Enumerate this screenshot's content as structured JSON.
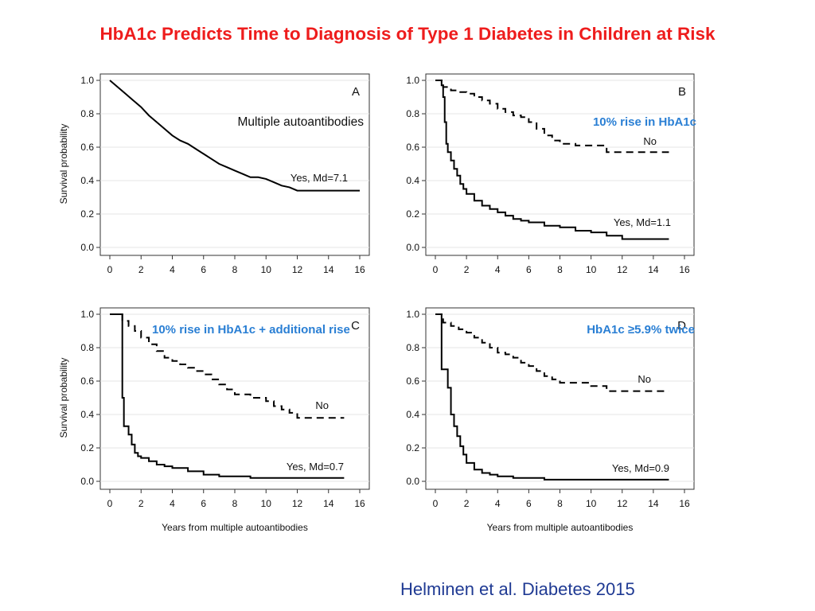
{
  "slide": {
    "title": "HbA1c Predicts Time to Diagnosis of Type 1 Diabetes in Children at Risk",
    "citation": "Helminen et al. Diabetes 2015",
    "title_color": "#ee1c1c",
    "citation_color": "#1f3a93",
    "annotation_color": "#2a7fd4"
  },
  "chart_data": [
    {
      "type": "line",
      "panel_letter": "A",
      "annotation": "Multiple autoantibodies",
      "annotation_style": "black",
      "ylabel": "Survival probability",
      "xlabel": "",
      "xlim": [
        0,
        16
      ],
      "ylim": [
        0,
        1
      ],
      "xticks": [
        "0",
        "2",
        "4",
        "6",
        "8",
        "10",
        "12",
        "14",
        "16"
      ],
      "yticks": [
        "0.0",
        "0.2",
        "0.4",
        "0.6",
        "0.8",
        "1.0"
      ],
      "series": [
        {
          "name": "Yes",
          "label": "Yes, Md=7.1",
          "style": "solid",
          "step": false,
          "x": [
            0,
            0.5,
            1,
            1.5,
            2,
            2.5,
            3,
            3.5,
            4,
            4.5,
            5,
            5.5,
            6,
            6.5,
            7,
            7.5,
            8,
            8.5,
            9,
            9.5,
            10,
            10.5,
            11,
            11.5,
            12,
            13,
            14,
            15,
            16
          ],
          "y": [
            1.0,
            0.96,
            0.92,
            0.88,
            0.84,
            0.79,
            0.75,
            0.71,
            0.67,
            0.64,
            0.62,
            0.59,
            0.56,
            0.53,
            0.5,
            0.48,
            0.46,
            0.44,
            0.42,
            0.42,
            0.41,
            0.39,
            0.37,
            0.36,
            0.34,
            0.34,
            0.34,
            0.34,
            0.34
          ]
        }
      ]
    },
    {
      "type": "line",
      "panel_letter": "B",
      "annotation": "10% rise in HbA1c",
      "annotation_style": "blue",
      "ylabel": "",
      "xlabel": "",
      "xlim": [
        0,
        16
      ],
      "ylim": [
        0,
        1
      ],
      "xticks": [
        "0",
        "2",
        "4",
        "6",
        "8",
        "10",
        "12",
        "14",
        "16"
      ],
      "yticks": [
        "0.0",
        "0.2",
        "0.4",
        "0.6",
        "0.8",
        "1.0"
      ],
      "series": [
        {
          "name": "No",
          "label": "No",
          "style": "dashed",
          "step": true,
          "x": [
            0,
            0.5,
            1,
            1.5,
            2,
            2.5,
            3,
            3.5,
            4,
            4.5,
            5,
            5.5,
            6,
            6.5,
            7,
            7.5,
            8,
            9,
            10,
            11,
            12,
            13,
            14,
            15
          ],
          "y": [
            1.0,
            0.96,
            0.94,
            0.93,
            0.92,
            0.9,
            0.88,
            0.86,
            0.83,
            0.81,
            0.79,
            0.78,
            0.75,
            0.71,
            0.67,
            0.64,
            0.62,
            0.61,
            0.61,
            0.57,
            0.57,
            0.57,
            0.57,
            0.57
          ]
        },
        {
          "name": "Yes",
          "label": "Yes, Md=1.1",
          "style": "solid",
          "step": true,
          "x": [
            0,
            0.4,
            0.5,
            0.6,
            0.7,
            0.8,
            1,
            1.2,
            1.4,
            1.6,
            1.8,
            2,
            2.5,
            3,
            3.5,
            4,
            4.5,
            5,
            5.5,
            6,
            7,
            8,
            9,
            10,
            11,
            12,
            13,
            15
          ],
          "y": [
            1.0,
            0.97,
            0.9,
            0.75,
            0.62,
            0.57,
            0.52,
            0.47,
            0.43,
            0.38,
            0.35,
            0.32,
            0.28,
            0.25,
            0.23,
            0.21,
            0.19,
            0.17,
            0.16,
            0.15,
            0.13,
            0.12,
            0.1,
            0.09,
            0.07,
            0.05,
            0.05,
            0.05
          ]
        }
      ]
    },
    {
      "type": "line",
      "panel_letter": "C",
      "annotation": "10% rise in HbA1c + additional rise",
      "annotation_style": "blue",
      "ylabel": "Survival probability",
      "xlabel": "Years from multiple autoantibodies",
      "xlim": [
        0,
        16
      ],
      "ylim": [
        0,
        1
      ],
      "xticks": [
        "0",
        "2",
        "4",
        "6",
        "8",
        "10",
        "12",
        "14",
        "16"
      ],
      "yticks": [
        "0.0",
        "0.2",
        "0.4",
        "0.6",
        "0.8",
        "1.0"
      ],
      "series": [
        {
          "name": "No",
          "label": "No",
          "style": "dashed",
          "step": true,
          "x": [
            0,
            0.8,
            1.2,
            1.6,
            2,
            2.5,
            3,
            3.5,
            4,
            4.5,
            5,
            5.5,
            6,
            6.5,
            7,
            7.5,
            8,
            9,
            10,
            10.5,
            11,
            11.5,
            12,
            13,
            14,
            15
          ],
          "y": [
            1.0,
            0.96,
            0.93,
            0.9,
            0.86,
            0.82,
            0.78,
            0.74,
            0.72,
            0.7,
            0.68,
            0.66,
            0.64,
            0.61,
            0.58,
            0.55,
            0.52,
            0.5,
            0.48,
            0.45,
            0.43,
            0.41,
            0.38,
            0.38,
            0.38,
            0.38
          ]
        },
        {
          "name": "Yes",
          "label": "Yes, Md=0.7",
          "style": "solid",
          "step": true,
          "x": [
            0,
            0.6,
            0.8,
            0.9,
            1,
            1.2,
            1.4,
            1.6,
            1.8,
            2,
            2.5,
            3,
            3.5,
            4,
            5,
            6,
            7,
            8,
            9,
            10,
            12,
            15
          ],
          "y": [
            1.0,
            1.0,
            0.5,
            0.33,
            0.33,
            0.28,
            0.22,
            0.17,
            0.15,
            0.14,
            0.12,
            0.1,
            0.09,
            0.08,
            0.06,
            0.04,
            0.03,
            0.03,
            0.02,
            0.02,
            0.02,
            0.02
          ]
        }
      ]
    },
    {
      "type": "line",
      "panel_letter": "D",
      "annotation": "HbA1c ≥5.9% twice",
      "annotation_style": "blue",
      "ylabel": "",
      "xlabel": "Years from multiple autoantibodies",
      "xlim": [
        0,
        16
      ],
      "ylim": [
        0,
        1
      ],
      "xticks": [
        "0",
        "2",
        "4",
        "6",
        "8",
        "10",
        "12",
        "14",
        "16"
      ],
      "yticks": [
        "0.0",
        "0.2",
        "0.4",
        "0.6",
        "0.8",
        "1.0"
      ],
      "series": [
        {
          "name": "No",
          "label": "No",
          "style": "dashed",
          "step": true,
          "x": [
            0,
            0.5,
            1,
            1.5,
            2,
            2.5,
            3,
            3.5,
            4,
            4.5,
            5,
            5.5,
            6,
            6.5,
            7,
            7.5,
            8,
            9,
            10,
            11,
            12,
            13,
            14,
            15
          ],
          "y": [
            1.0,
            0.95,
            0.93,
            0.91,
            0.89,
            0.86,
            0.83,
            0.8,
            0.77,
            0.76,
            0.74,
            0.71,
            0.69,
            0.66,
            0.63,
            0.61,
            0.59,
            0.59,
            0.57,
            0.54,
            0.54,
            0.54,
            0.54,
            0.54
          ]
        },
        {
          "name": "Yes",
          "label": "Yes, Md=0.9",
          "style": "solid",
          "step": true,
          "x": [
            0,
            0.4,
            0.6,
            0.8,
            1,
            1.2,
            1.4,
            1.6,
            1.8,
            2,
            2.5,
            3,
            3.5,
            4,
            5,
            6,
            7,
            8,
            10,
            12,
            15
          ],
          "y": [
            1.0,
            0.67,
            0.67,
            0.56,
            0.4,
            0.33,
            0.27,
            0.21,
            0.16,
            0.11,
            0.07,
            0.05,
            0.04,
            0.03,
            0.02,
            0.02,
            0.01,
            0.01,
            0.01,
            0.01,
            0.01
          ]
        }
      ]
    }
  ]
}
